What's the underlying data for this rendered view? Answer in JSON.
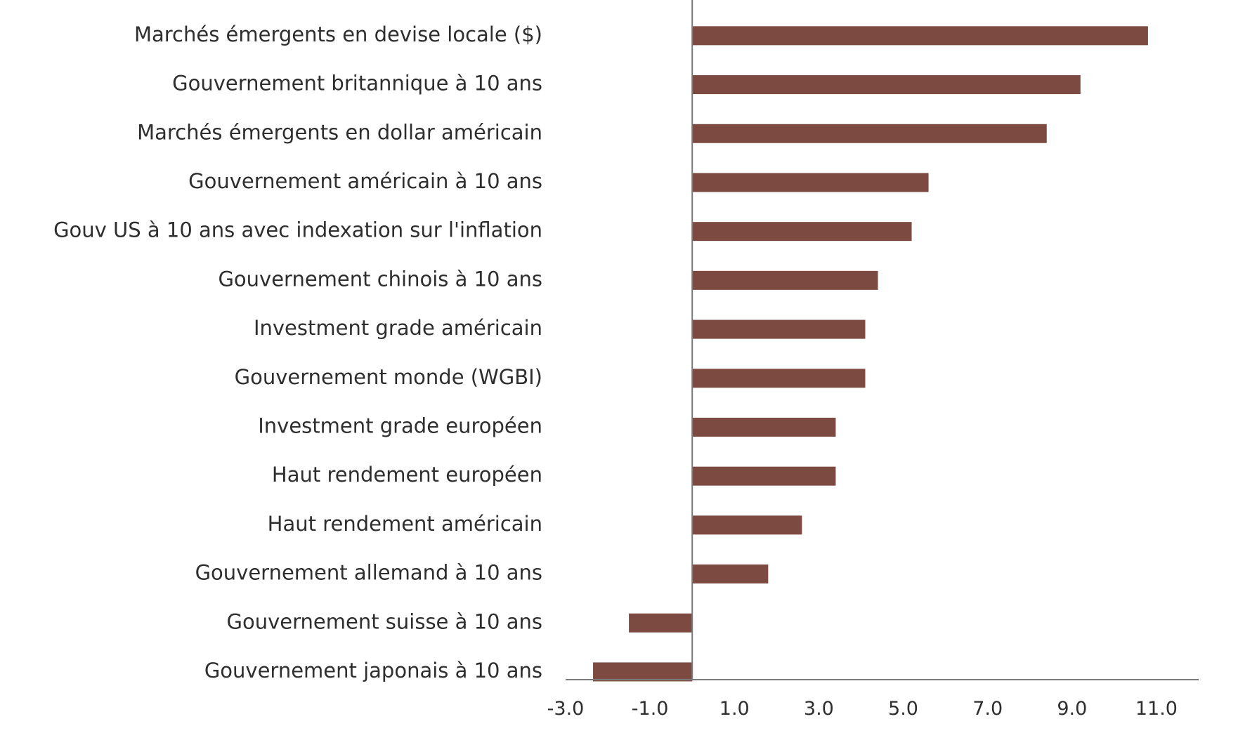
{
  "chart_data": {
    "type": "bar",
    "orientation": "horizontal",
    "categories": [
      "Marchés émergents en devise locale ($)",
      "Gouvernement britannique à 10 ans",
      "Marchés émergents en dollar américain",
      "Gouvernement américain à 10 ans",
      "Gouv US à 10 ans avec indexation sur l'inflation",
      "Gouvernement chinois à 10 ans",
      "Investment grade américain",
      "Gouvernement monde (WGBI)",
      "Investment grade européen",
      "Haut rendement européen",
      "Haut rendement américain",
      "Gouvernement allemand à 10 ans",
      "Gouvernement suisse à 10 ans",
      "Gouvernement japonais à 10 ans"
    ],
    "values": [
      10.8,
      9.2,
      8.4,
      5.6,
      5.2,
      4.4,
      4.1,
      4.1,
      3.4,
      3.4,
      2.6,
      1.8,
      -1.5,
      -2.35
    ],
    "x_ticks": [
      "-3.0",
      "-1.0",
      "1.0",
      "3.0",
      "5.0",
      "7.0",
      "9.0",
      "11.0"
    ],
    "xlim": [
      -3,
      12
    ],
    "grid": false,
    "legend": false,
    "bar_color": "#7d4a41"
  }
}
